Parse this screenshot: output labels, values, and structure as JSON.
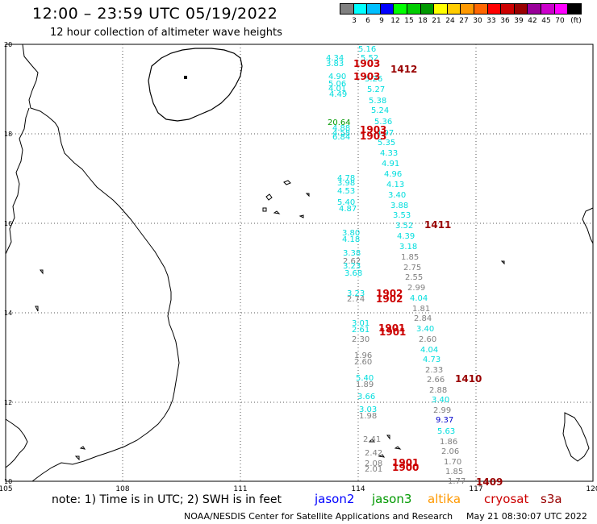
{
  "title": "12:00 – 23:59 UTC 05/19/2022",
  "subtitle": "12 hour collection of altimeter wave heights",
  "legend": {
    "colors": [
      "#808080",
      "#00ffff",
      "#00bfff",
      "#0000ff",
      "#00ff00",
      "#00cc00",
      "#009900",
      "#ffff00",
      "#ffcc00",
      "#ff9900",
      "#ff6600",
      "#ff0000",
      "#cc0000",
      "#990000",
      "#990099",
      "#cc00cc",
      "#ff00ff",
      "#000000"
    ],
    "labels": [
      "3",
      "6",
      "9",
      "12",
      "15",
      "18",
      "21",
      "24",
      "27",
      "30",
      "33",
      "36",
      "39",
      "42",
      "45",
      "70",
      "(ft)"
    ]
  },
  "axes": {
    "x_labels": [
      "105",
      "108",
      "111",
      "114",
      "117",
      "120"
    ],
    "y_labels": [
      "20",
      "18",
      "16",
      "14",
      "12",
      "10"
    ]
  },
  "note": "note: 1) Time is in UTC; 2) SWH is in feet",
  "satellites": [
    {
      "name": "jason2",
      "color": "#0000ff"
    },
    {
      "name": "jason3",
      "color": "#009900"
    },
    {
      "name": "altika",
      "color": "#ff9900"
    },
    {
      "name": "cryosat",
      "color": "#cc0000"
    },
    {
      "name": "s3a",
      "color": "#990000"
    }
  ],
  "footer_left": "NOAA/NESDIS Center for Satellite Applications and Research",
  "footer_right": "May 21 08:30:07 UTC 2022",
  "times": [
    {
      "t": "1903",
      "c": "#cc0000"
    },
    {
      "t": "1412",
      "c": "#990000"
    },
    {
      "t": "1903",
      "c": "#cc0000"
    },
    {
      "t": "1903",
      "c": "#cc0000"
    },
    {
      "t": "1903",
      "c": "#cc0000"
    },
    {
      "t": "1411",
      "c": "#990000"
    },
    {
      "t": "1902",
      "c": "#cc0000"
    },
    {
      "t": "1902",
      "c": "#cc0000"
    },
    {
      "t": "1901",
      "c": "#cc0000"
    },
    {
      "t": "1901",
      "c": "#cc0000"
    },
    {
      "t": "1410",
      "c": "#990000"
    },
    {
      "t": "1901",
      "c": "#cc0000"
    },
    {
      "t": "1900",
      "c": "#cc0000"
    },
    {
      "t": "1409",
      "c": "#990000"
    }
  ],
  "values": [
    {
      "v": "5.16",
      "c": "#00dddd"
    },
    {
      "v": "5.52",
      "c": "#00dddd"
    },
    {
      "v": "4.34",
      "c": "#00dddd"
    },
    {
      "v": "3.83",
      "c": "#00dddd"
    },
    {
      "v": "4.90",
      "c": "#00dddd"
    },
    {
      "v": "5.06",
      "c": "#00dddd"
    },
    {
      "v": "4.01",
      "c": "#00dddd"
    },
    {
      "v": "4.49",
      "c": "#00dddd"
    },
    {
      "v": "5.26",
      "c": "#00dddd"
    },
    {
      "v": "5.27",
      "c": "#00dddd"
    },
    {
      "v": "5.38",
      "c": "#00dddd"
    },
    {
      "v": "5.24",
      "c": "#00dddd"
    },
    {
      "v": "20.64",
      "c": "#009900"
    },
    {
      "v": "4.88",
      "c": "#00dddd"
    },
    {
      "v": "4.58",
      "c": "#00dddd"
    },
    {
      "v": "6.84",
      "c": "#00dddd"
    },
    {
      "v": "5.36",
      "c": "#00dddd"
    },
    {
      "v": "4.97",
      "c": "#00dddd"
    },
    {
      "v": "5.35",
      "c": "#00dddd"
    },
    {
      "v": "4.33",
      "c": "#00dddd"
    },
    {
      "v": "4.91",
      "c": "#00dddd"
    },
    {
      "v": "4.96",
      "c": "#00dddd"
    },
    {
      "v": "4.78",
      "c": "#00dddd"
    },
    {
      "v": "3.98",
      "c": "#00dddd"
    },
    {
      "v": "4.13",
      "c": "#00dddd"
    },
    {
      "v": "4.53",
      "c": "#00dddd"
    },
    {
      "v": "3.40",
      "c": "#00dddd"
    },
    {
      "v": "5.40",
      "c": "#00dddd"
    },
    {
      "v": "4.87",
      "c": "#00dddd"
    },
    {
      "v": "3.88",
      "c": "#00dddd"
    },
    {
      "v": "3.53",
      "c": "#00dddd"
    },
    {
      "v": "3.52",
      "c": "#00dddd"
    },
    {
      "v": "3.80",
      "c": "#00dddd"
    },
    {
      "v": "4.39",
      "c": "#00dddd"
    },
    {
      "v": "4.18",
      "c": "#00dddd"
    },
    {
      "v": "3.18",
      "c": "#00dddd"
    },
    {
      "v": "3.38",
      "c": "#00dddd"
    },
    {
      "v": "1.85",
      "c": "#808080"
    },
    {
      "v": "2.62",
      "c": "#808080"
    },
    {
      "v": "3.23",
      "c": "#00dddd"
    },
    {
      "v": "2.75",
      "c": "#808080"
    },
    {
      "v": "3.68",
      "c": "#00dddd"
    },
    {
      "v": "2.55",
      "c": "#808080"
    },
    {
      "v": "2.99",
      "c": "#808080"
    },
    {
      "v": "3.23",
      "c": "#00dddd"
    },
    {
      "v": "2.74",
      "c": "#808080"
    },
    {
      "v": "4.04",
      "c": "#00dddd"
    },
    {
      "v": "1.81",
      "c": "#808080"
    },
    {
      "v": "2.84",
      "c": "#808080"
    },
    {
      "v": "3.01",
      "c": "#00dddd"
    },
    {
      "v": "2.61",
      "c": "#00dddd"
    },
    {
      "v": "3.40",
      "c": "#00dddd"
    },
    {
      "v": "2.30",
      "c": "#808080"
    },
    {
      "v": "2.60",
      "c": "#808080"
    },
    {
      "v": "4.04",
      "c": "#00dddd"
    },
    {
      "v": "1.96",
      "c": "#808080"
    },
    {
      "v": "2.60",
      "c": "#808080"
    },
    {
      "v": "4.73",
      "c": "#00dddd"
    },
    {
      "v": "2.33",
      "c": "#808080"
    },
    {
      "v": "5.40",
      "c": "#00dddd"
    },
    {
      "v": "2.66",
      "c": "#808080"
    },
    {
      "v": "1.89",
      "c": "#808080"
    },
    {
      "v": "2.88",
      "c": "#808080"
    },
    {
      "v": "3.66",
      "c": "#00dddd"
    },
    {
      "v": "3.40",
      "c": "#00dddd"
    },
    {
      "v": "2.99",
      "c": "#808080"
    },
    {
      "v": "3.03",
      "c": "#00dddd"
    },
    {
      "v": "1.98",
      "c": "#808080"
    },
    {
      "v": "9.37",
      "c": "#0000cc"
    },
    {
      "v": "5.63",
      "c": "#00dddd"
    },
    {
      "v": "2.41",
      "c": "#808080"
    },
    {
      "v": "1.86",
      "c": "#808080"
    },
    {
      "v": "2.42",
      "c": "#808080"
    },
    {
      "v": "2.06",
      "c": "#808080"
    },
    {
      "v": "1.70",
      "c": "#808080"
    },
    {
      "v": "2.08",
      "c": "#808080"
    },
    {
      "v": "2.01",
      "c": "#808080"
    },
    {
      "v": "1.85",
      "c": "#808080"
    },
    {
      "v": "1.77",
      "c": "#808080"
    }
  ]
}
